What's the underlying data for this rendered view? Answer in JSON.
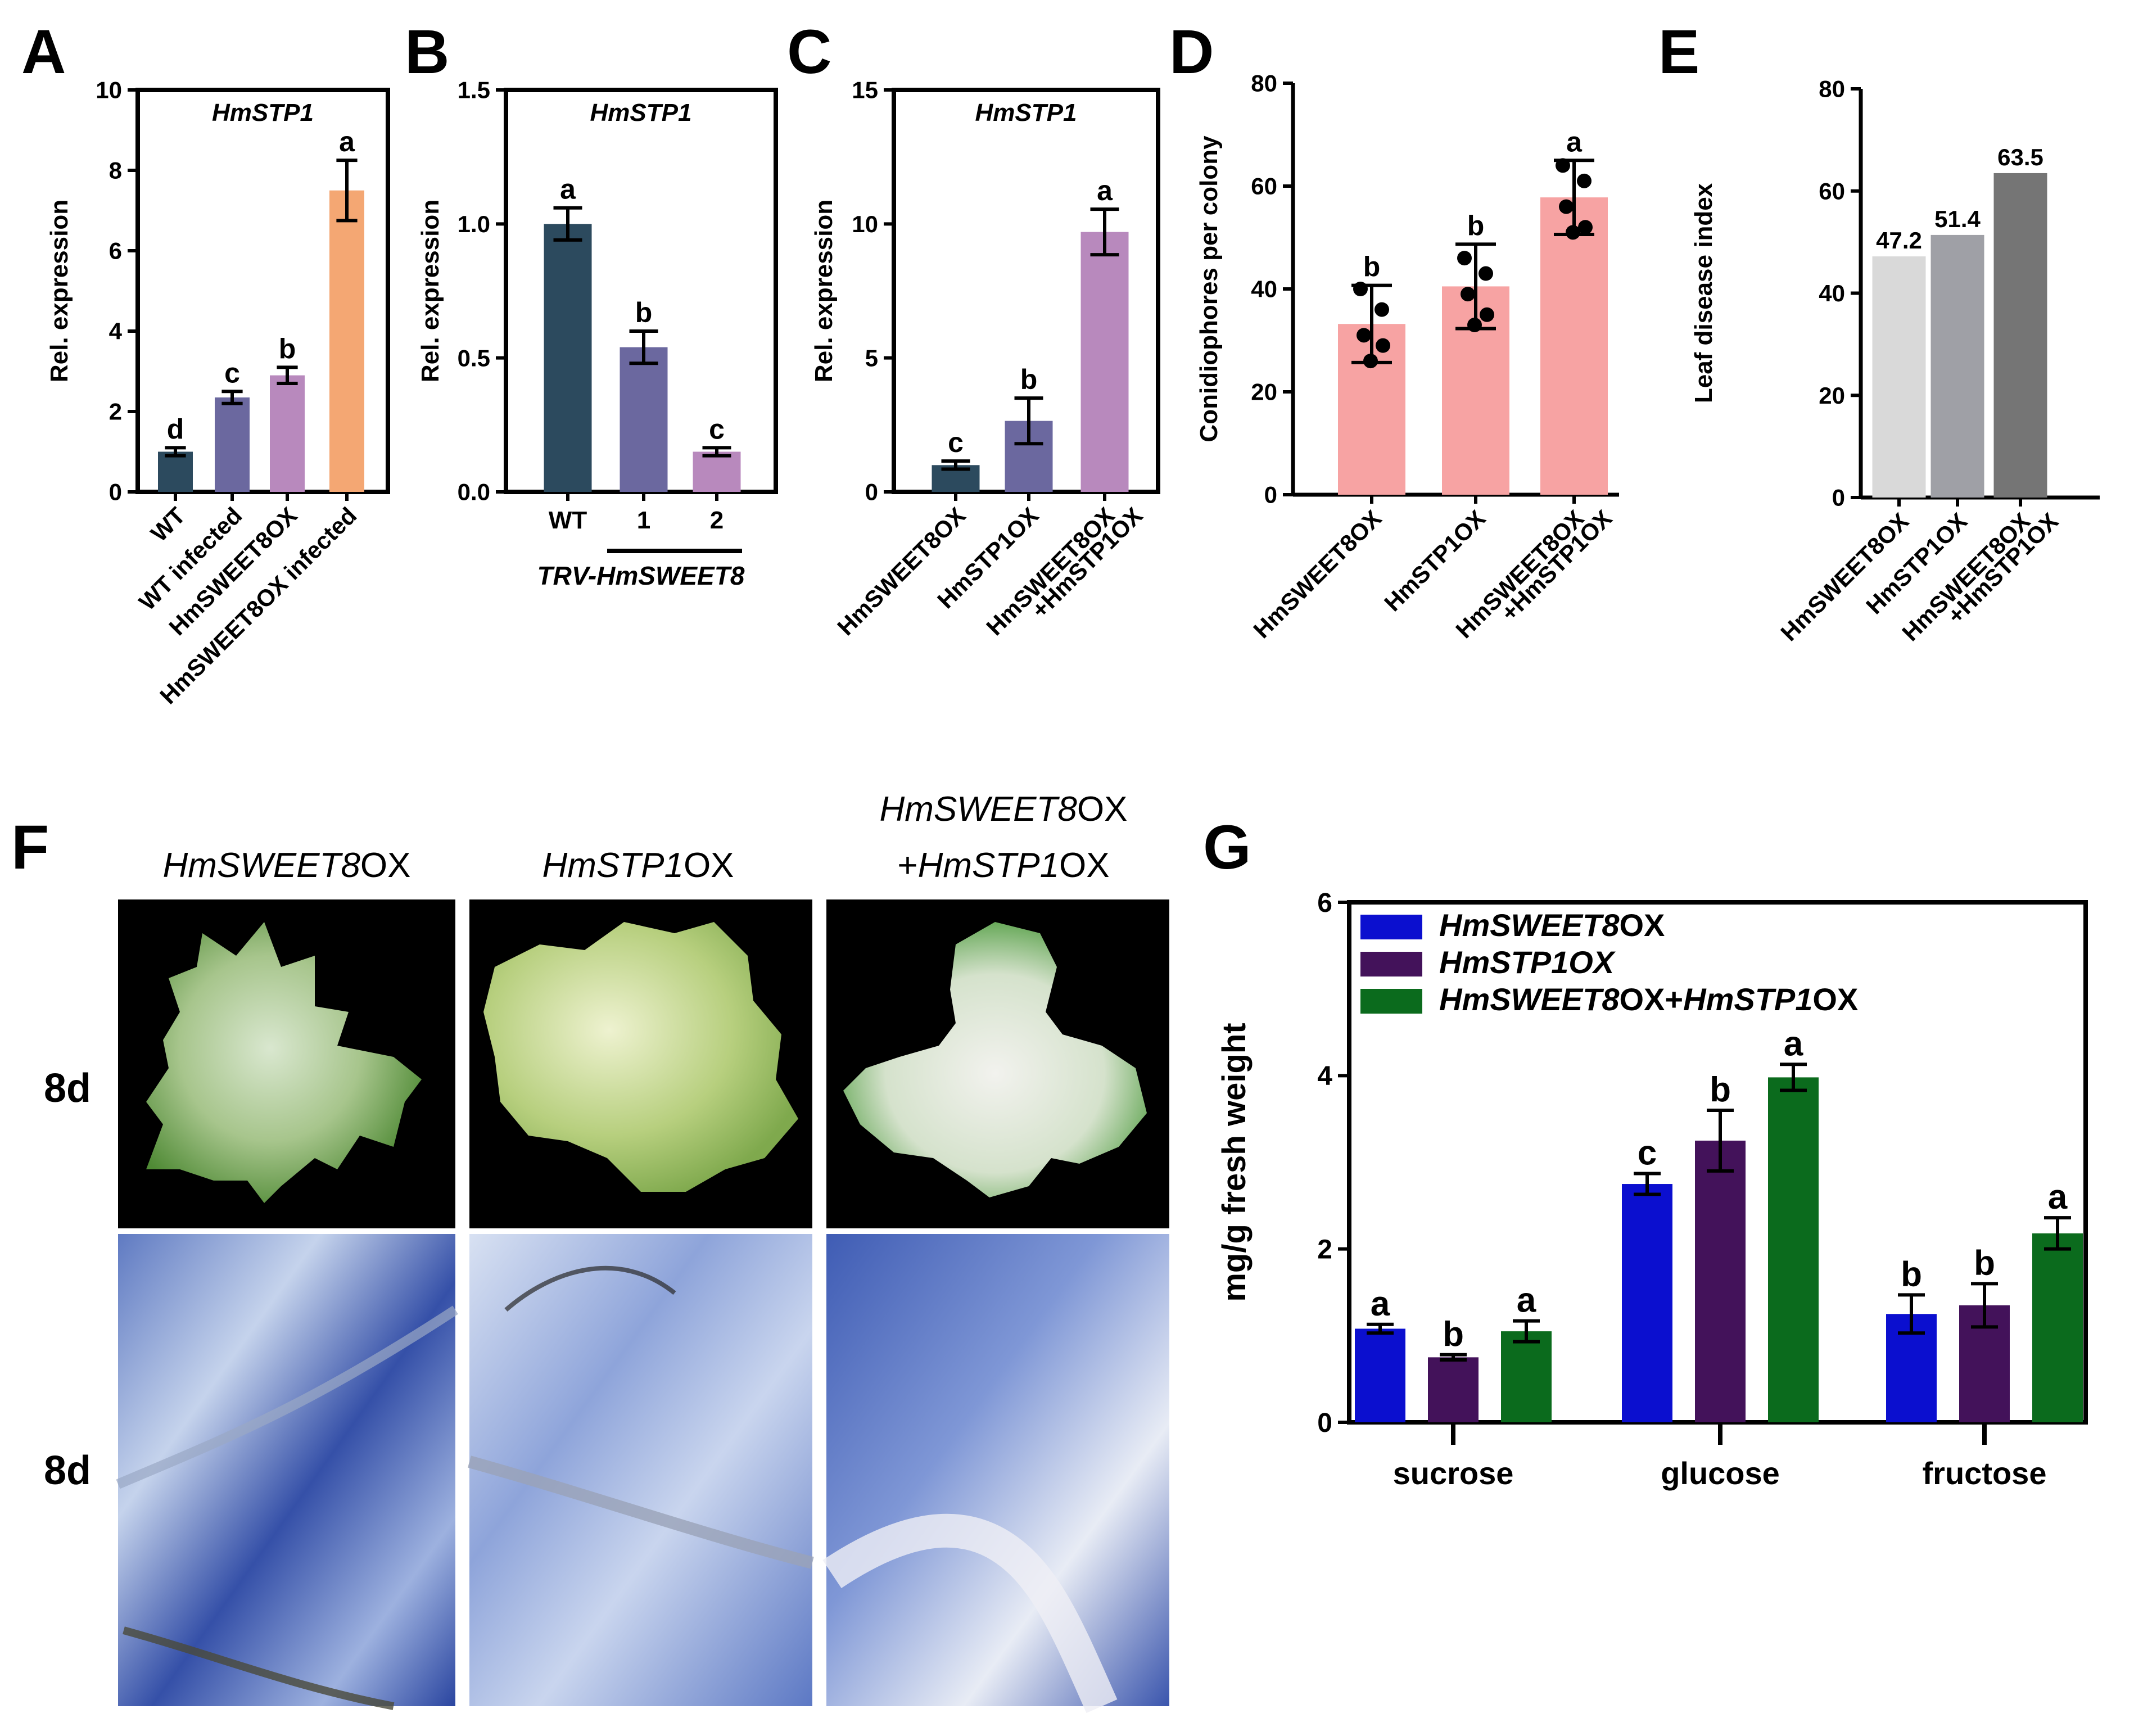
{
  "panels": {
    "A": {
      "letter": "A",
      "gene": "HmSTP1",
      "ylabel": "Rel. expression"
    },
    "B": {
      "letter": "B",
      "gene": "HmSTP1",
      "ylabel": "Rel. expression",
      "group_label": "TRV-HmSWEET8"
    },
    "C": {
      "letter": "C",
      "gene": "HmSTP1",
      "ylabel": "Rel. expression"
    },
    "D": {
      "letter": "D",
      "ylabel": "Conidiophores per colony"
    },
    "E": {
      "letter": "E",
      "ylabel": "Leaf disease index"
    },
    "F": {
      "letter": "F",
      "time_label_top": "8d",
      "time_label_bottom": "8d",
      "col1_italic": "HmSWEET8",
      "col1_suffix": "OX",
      "col2_italic": "HmSTP1",
      "col2_suffix": "OX",
      "col3_line1_italic": "HmSWEET8",
      "col3_line1_suffix": "OX",
      "col3_line2_prefix": "+",
      "col3_line2_italic": "HmSTP1",
      "col3_line2_suffix": "OX"
    },
    "G": {
      "letter": "G",
      "ylabel": "mg/g fresh weight"
    }
  },
  "chart_data": [
    {
      "id": "A",
      "type": "bar",
      "title": "HmSTP1",
      "ylabel": "Rel. expression",
      "ylim": [
        0,
        10
      ],
      "yticks": [
        0,
        2,
        4,
        6,
        8,
        10
      ],
      "categories": [
        "WT",
        "WT infected",
        "HmSWEET8OX",
        "HmSWEET8OX infected"
      ],
      "values": [
        1.0,
        2.35,
        2.9,
        7.5
      ],
      "errors": [
        0.1,
        0.15,
        0.2,
        0.75
      ],
      "letters": [
        "d",
        "c",
        "b",
        "a"
      ],
      "colors": [
        "#2c4a5e",
        "#6b689f",
        "#b889bd",
        "#f4a773"
      ]
    },
    {
      "id": "B",
      "type": "bar",
      "title": "HmSTP1",
      "ylabel": "Rel. expression",
      "ylim": [
        0,
        1.5
      ],
      "yticks": [
        "0.0",
        "0.5",
        "1.0",
        "1.5"
      ],
      "categories": [
        "WT",
        "1",
        "2"
      ],
      "values": [
        1.0,
        0.54,
        0.15
      ],
      "errors": [
        0.06,
        0.06,
        0.015
      ],
      "letters": [
        "a",
        "b",
        "c"
      ],
      "colors": [
        "#2c4a5e",
        "#6b689f",
        "#b889bd"
      ]
    },
    {
      "id": "C",
      "type": "bar",
      "title": "HmSTP1",
      "ylabel": "Rel. expression",
      "ylim": [
        0,
        15
      ],
      "yticks": [
        0,
        5,
        10,
        15
      ],
      "categories": [
        "HmSWEET8OX",
        "HmSTP1OX",
        "HmSWEET8OX\n+HmSTP1OX"
      ],
      "values": [
        1.0,
        2.65,
        9.7
      ],
      "errors": [
        0.15,
        0.85,
        0.85
      ],
      "letters": [
        "c",
        "b",
        "a"
      ],
      "colors": [
        "#2c4a5e",
        "#6b689f",
        "#b889bd"
      ]
    },
    {
      "id": "D",
      "type": "bar",
      "ylabel": "Conidiophores per colony",
      "ylim": [
        0,
        80
      ],
      "yticks": [
        0,
        20,
        40,
        60,
        80
      ],
      "categories": [
        "HmSWEET8OX",
        "HmSTP1OX",
        "HmSWEET8OX\n+HmSTP1OX"
      ],
      "values": [
        33.2,
        40.5,
        57.8
      ],
      "errors": [
        7.5,
        8.2,
        7.2
      ],
      "points": [
        [
          40,
          36,
          31,
          29,
          26
        ],
        [
          46,
          43,
          39,
          35,
          33
        ],
        [
          64,
          61,
          56,
          52,
          51
        ]
      ],
      "letters": [
        "b",
        "b",
        "a"
      ],
      "colors": [
        "#f7a3a3",
        "#f7a3a3",
        "#f7a3a3"
      ]
    },
    {
      "id": "E",
      "type": "bar",
      "ylabel": "Leaf disease index",
      "ylim": [
        0,
        80
      ],
      "yticks": [
        0,
        20,
        40,
        60,
        80
      ],
      "categories": [
        "HmSWEET8OX",
        "HmSTP1OX",
        "HmSWEET8OX\n+HmSTP1OX"
      ],
      "values": [
        47.2,
        51.4,
        63.5
      ],
      "value_labels": [
        "47.2",
        "51.4",
        "63.5"
      ],
      "colors": [
        "#d9d9d9",
        "#9fa0a6",
        "#757575"
      ]
    },
    {
      "id": "G",
      "type": "bar",
      "ylabel": "mg/g fresh weight",
      "ylim": [
        0,
        6
      ],
      "yticks": [
        0,
        2,
        4,
        6
      ],
      "categories": [
        "sucrose",
        "glucose",
        "fructose"
      ],
      "series": [
        {
          "name": "HmSWEET8OX",
          "legend_italic": "HmSWEET8",
          "legend_suffix": "OX",
          "color": "#0b0fcf",
          "values": [
            1.08,
            2.75,
            1.25
          ],
          "errors": [
            0.05,
            0.12,
            0.22
          ],
          "letters": [
            "a",
            "c",
            "b"
          ]
        },
        {
          "name": "HmSTP1OX",
          "legend_italic": "HmSTP1OX",
          "legend_suffix": "",
          "color": "#43125a",
          "values": [
            0.75,
            3.25,
            1.35
          ],
          "errors": [
            0.03,
            0.35,
            0.25
          ],
          "letters": [
            "b",
            "b",
            "b"
          ]
        },
        {
          "name": "HmSWEET8OX+HmSTP1OX",
          "legend_italic": "HmSWEET8",
          "legend_suffix": "OX+",
          "legend_italic2": "HmSTP1",
          "legend_suffix2": "OX",
          "color": "#0b6b1d",
          "values": [
            1.05,
            3.98,
            2.18
          ],
          "errors": [
            0.12,
            0.15,
            0.18
          ],
          "letters": [
            "a",
            "a",
            "a"
          ]
        }
      ],
      "legend_position": "top-left"
    }
  ]
}
